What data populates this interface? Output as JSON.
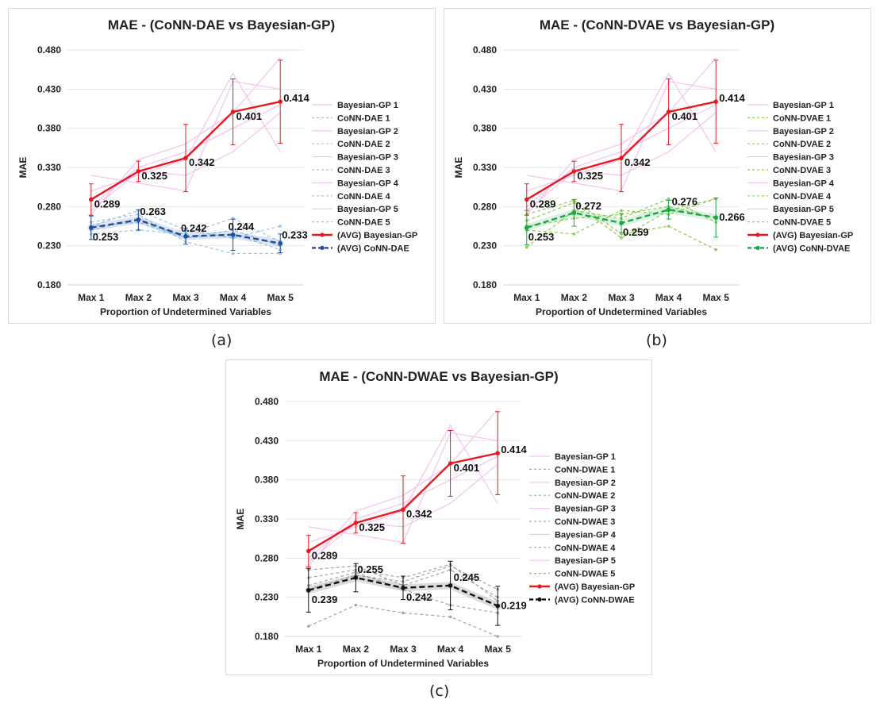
{
  "figure": {
    "captions": [
      "(a)",
      "(b)",
      "(c)"
    ]
  },
  "chart_data": [
    {
      "type": "line",
      "title": "MAE - (CoNN-DAE vs Bayesian-GP)",
      "xlabel": "Proportion of Undetermined Variables",
      "ylabel": "MAE",
      "categories": [
        "Max 1",
        "Max 2",
        "Max 3",
        "Max 4",
        "Max 5"
      ],
      "ylim": [
        0.18,
        0.48
      ],
      "yticks": [
        "0.180",
        "0.230",
        "0.280",
        "0.330",
        "0.380",
        "0.430",
        "0.480"
      ],
      "legend_position": "right",
      "series": [
        {
          "name": "Bayesian-GP 1",
          "values": [
            0.32,
            0.31,
            0.3,
            0.44,
            0.43
          ],
          "color": "#f4c2f0",
          "style": "thin"
        },
        {
          "name": "CoNN-DAE 1",
          "values": [
            0.25,
            0.265,
            0.24,
            0.25,
            0.23
          ],
          "color": "#9dc3e6",
          "style": "thin-dash"
        },
        {
          "name": "Bayesian-GP 2",
          "values": [
            0.28,
            0.33,
            0.35,
            0.38,
            0.41
          ],
          "color": "#f4c2f0",
          "style": "thin"
        },
        {
          "name": "CoNN-DAE 2",
          "values": [
            0.26,
            0.27,
            0.235,
            0.22,
            0.22
          ],
          "color": "#9dc3e6",
          "style": "thin-dash"
        },
        {
          "name": "Bayesian-GP 3",
          "values": [
            0.27,
            0.34,
            0.36,
            0.4,
            0.47
          ],
          "color": "#f4c2f0",
          "style": "thin"
        },
        {
          "name": "CoNN-DAE 3",
          "values": [
            0.245,
            0.25,
            0.245,
            0.265,
            0.235
          ],
          "color": "#9dc3e6",
          "style": "thin-dash"
        },
        {
          "name": "Bayesian-GP 4",
          "values": [
            0.3,
            0.32,
            0.34,
            0.45,
            0.35
          ],
          "color": "#f4c2f0",
          "style": "thin"
        },
        {
          "name": "CoNN-DAE 4",
          "values": [
            0.255,
            0.275,
            0.25,
            0.24,
            0.255
          ],
          "color": "#9dc3e6",
          "style": "thin-dash"
        },
        {
          "name": "Bayesian-GP 5",
          "values": [
            0.275,
            0.325,
            0.32,
            0.35,
            0.4
          ],
          "color": "#f4c2f0",
          "style": "thin"
        },
        {
          "name": "CoNN-DAE 5",
          "values": [
            0.255,
            0.26,
            0.24,
            0.245,
            0.225
          ],
          "color": "#9dc3e6",
          "style": "thin-dash"
        },
        {
          "name": "(AVG) Bayesian-GP",
          "values": [
            0.289,
            0.325,
            0.342,
            0.401,
            0.414
          ],
          "err": [
            0.02,
            0.013,
            0.043,
            0.042,
            0.053
          ],
          "color": "#e8181e",
          "style": "avg",
          "labels": [
            "0.289",
            "0.325",
            "0.342",
            "0.401",
            "0.414"
          ]
        },
        {
          "name": "(AVG) CoNN-DAE",
          "values": [
            0.253,
            0.263,
            0.242,
            0.244,
            0.233
          ],
          "err": [
            0.015,
            0.013,
            0.01,
            0.02,
            0.012
          ],
          "color": "#1f4e9a",
          "style": "avg-dash",
          "labels": [
            "0.253",
            "0.263",
            "0.242",
            "0.244",
            "0.233"
          ]
        }
      ]
    },
    {
      "type": "line",
      "title": "MAE - (CoNN-DVAE vs Bayesian-GP)",
      "xlabel": "Proportion of Undetermined Variables",
      "ylabel": "MAE",
      "categories": [
        "Max 1",
        "Max 2",
        "Max 3",
        "Max 4",
        "Max 5"
      ],
      "ylim": [
        0.18,
        0.48
      ],
      "yticks": [
        "0.180",
        "0.230",
        "0.280",
        "0.330",
        "0.380",
        "0.430",
        "0.480"
      ],
      "legend_position": "right",
      "series": [
        {
          "name": "Bayesian-GP 1",
          "values": [
            0.32,
            0.31,
            0.3,
            0.44,
            0.43
          ],
          "color": "#f4c2f0",
          "style": "thin"
        },
        {
          "name": "CoNN-DVAE 1",
          "values": [
            0.228,
            0.275,
            0.265,
            0.29,
            0.26
          ],
          "color": "#8fcf4f",
          "style": "thin-dash"
        },
        {
          "name": "Bayesian-GP 2",
          "values": [
            0.28,
            0.33,
            0.35,
            0.38,
            0.41
          ],
          "color": "#f4c2f0",
          "style": "thin"
        },
        {
          "name": "CoNN-DVAE 2",
          "values": [
            0.25,
            0.245,
            0.275,
            0.27,
            0.29
          ],
          "color": "#8fcf4f",
          "style": "thin-dash"
        },
        {
          "name": "Bayesian-GP 3",
          "values": [
            0.27,
            0.34,
            0.36,
            0.4,
            0.47
          ],
          "color": "#f4c2f0",
          "style": "thin"
        },
        {
          "name": "CoNN-DVAE 3",
          "values": [
            0.27,
            0.288,
            0.245,
            0.255,
            0.225
          ],
          "color": "#8fcf4f",
          "style": "thin-dash"
        },
        {
          "name": "Bayesian-GP 4",
          "values": [
            0.3,
            0.32,
            0.34,
            0.45,
            0.35
          ],
          "color": "#f4c2f0",
          "style": "thin"
        },
        {
          "name": "CoNN-DVAE 4",
          "values": [
            0.255,
            0.265,
            0.27,
            0.28,
            0.265
          ],
          "color": "#8fcf4f",
          "style": "thin-dash"
        },
        {
          "name": "Bayesian-GP 5",
          "values": [
            0.275,
            0.325,
            0.32,
            0.35,
            0.4
          ],
          "color": "#f4c2f0",
          "style": "thin"
        },
        {
          "name": "CoNN-DVAE 5",
          "values": [
            0.262,
            0.285,
            0.24,
            0.275,
            0.29
          ],
          "color": "#8fcf4f",
          "style": "thin-dash"
        },
        {
          "name": "(AVG) Bayesian-GP",
          "values": [
            0.289,
            0.325,
            0.342,
            0.401,
            0.414
          ],
          "err": [
            0.02,
            0.013,
            0.043,
            0.042,
            0.053
          ],
          "color": "#e8181e",
          "style": "avg",
          "labels": [
            "0.289",
            "0.325",
            "0.342",
            "0.401",
            "0.414"
          ]
        },
        {
          "name": "(AVG) CoNN-DVAE",
          "values": [
            0.253,
            0.272,
            0.259,
            0.276,
            0.266
          ],
          "err": [
            0.022,
            0.017,
            0.012,
            0.012,
            0.025
          ],
          "color": "#1aa64a",
          "style": "avg-dash",
          "labels": [
            "0.253",
            "0.272",
            "0.259",
            "0.276",
            "0.266"
          ]
        }
      ]
    },
    {
      "type": "line",
      "title": "MAE - (CoNN-DWAE vs Bayesian-GP)",
      "xlabel": "Proportion of Undetermined Variables",
      "ylabel": "MAE",
      "categories": [
        "Max 1",
        "Max 2",
        "Max 3",
        "Max 4",
        "Max 5"
      ],
      "ylim": [
        0.18,
        0.48
      ],
      "yticks": [
        "0.180",
        "0.230",
        "0.280",
        "0.330",
        "0.380",
        "0.430",
        "0.480"
      ],
      "legend_position": "right",
      "series": [
        {
          "name": "Bayesian-GP 1",
          "values": [
            0.32,
            0.31,
            0.3,
            0.44,
            0.43
          ],
          "color": "#f4c2f0",
          "style": "thin"
        },
        {
          "name": "CoNN-DWAE 1",
          "values": [
            0.193,
            0.22,
            0.21,
            0.205,
            0.18
          ],
          "color": "#a6a6a6",
          "style": "thin-dash"
        },
        {
          "name": "Bayesian-GP 2",
          "values": [
            0.28,
            0.33,
            0.35,
            0.38,
            0.41
          ],
          "color": "#f4c2f0",
          "style": "thin"
        },
        {
          "name": "CoNN-DWAE 2",
          "values": [
            0.24,
            0.258,
            0.25,
            0.27,
            0.24
          ],
          "color": "#a6a6a6",
          "style": "thin-dash"
        },
        {
          "name": "Bayesian-GP 3",
          "values": [
            0.27,
            0.34,
            0.36,
            0.4,
            0.47
          ],
          "color": "#f4c2f0",
          "style": "thin"
        },
        {
          "name": "CoNN-DWAE 3",
          "values": [
            0.255,
            0.265,
            0.255,
            0.272,
            0.225
          ],
          "color": "#a6a6a6",
          "style": "thin-dash"
        },
        {
          "name": "Bayesian-GP 4",
          "values": [
            0.3,
            0.32,
            0.34,
            0.45,
            0.35
          ],
          "color": "#f4c2f0",
          "style": "thin"
        },
        {
          "name": "CoNN-DWAE 4",
          "values": [
            0.265,
            0.27,
            0.245,
            0.265,
            0.23
          ],
          "color": "#a6a6a6",
          "style": "thin-dash"
        },
        {
          "name": "Bayesian-GP 5",
          "values": [
            0.275,
            0.325,
            0.32,
            0.35,
            0.4
          ],
          "color": "#f4c2f0",
          "style": "thin"
        },
        {
          "name": "CoNN-DWAE 5",
          "values": [
            0.245,
            0.262,
            0.24,
            0.22,
            0.21
          ],
          "color": "#a6a6a6",
          "style": "thin-dash"
        },
        {
          "name": "(AVG) Bayesian-GP",
          "values": [
            0.289,
            0.325,
            0.342,
            0.401,
            0.414
          ],
          "err": [
            0.02,
            0.013,
            0.043,
            0.042,
            0.053
          ],
          "color": "#e8181e",
          "style": "avg",
          "labels": [
            "0.289",
            "0.325",
            "0.342",
            "0.401",
            "0.414"
          ]
        },
        {
          "name": "(AVG) CoNN-DWAE",
          "values": [
            0.239,
            0.255,
            0.242,
            0.245,
            0.219
          ],
          "err": [
            0.028,
            0.018,
            0.015,
            0.031,
            0.025
          ],
          "color": "#111111",
          "style": "avg-dash",
          "labels": [
            "0.239",
            "0.255",
            "0.242",
            "0.245",
            "0.219"
          ]
        }
      ]
    }
  ]
}
